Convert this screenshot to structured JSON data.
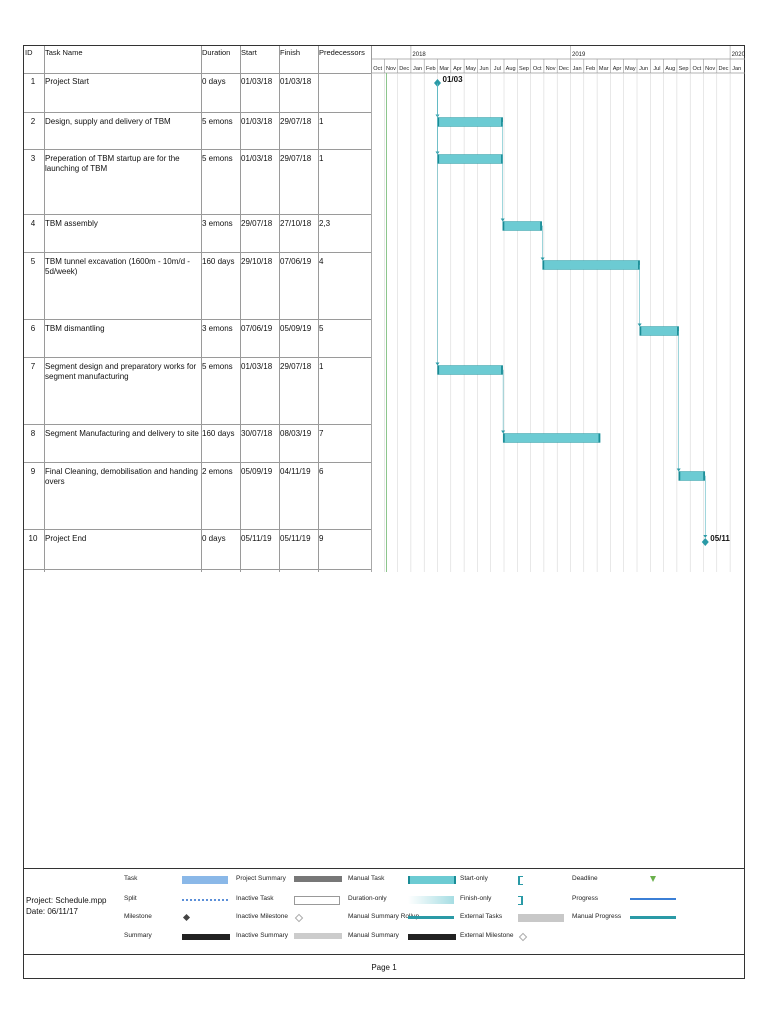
{
  "columns": {
    "id": "ID",
    "name": "Task Name",
    "duration": "Duration",
    "start": "Start",
    "finish": "Finish",
    "predecessors": "Predecessors"
  },
  "timeline": {
    "years": [
      "2018",
      "2019",
      "2020"
    ],
    "months": [
      "Oct",
      "Nov",
      "Dec",
      "Jan",
      "Feb",
      "Mar",
      "Apr",
      "May",
      "Jun",
      "Jul",
      "Aug",
      "Sep",
      "Oct",
      "Nov",
      "Dec",
      "Jan",
      "Feb",
      "Mar",
      "Apr",
      "May",
      "Jun",
      "Jul",
      "Aug",
      "Sep",
      "Oct",
      "Nov",
      "Dec",
      "Jan"
    ]
  },
  "tasks": [
    {
      "id": "1",
      "name": "Project Start",
      "duration": "0 days",
      "start": "01/03/18",
      "finish": "01/03/18",
      "pred": ""
    },
    {
      "id": "2",
      "name": "Design, supply and delivery of TBM",
      "duration": "5 emons",
      "start": "01/03/18",
      "finish": "29/07/18",
      "pred": "1"
    },
    {
      "id": "3",
      "name": "Preperation of TBM startup are for the launching of TBM",
      "duration": "5 emons",
      "start": "01/03/18",
      "finish": "29/07/18",
      "pred": "1"
    },
    {
      "id": "4",
      "name": "TBM assembly",
      "duration": "3 emons",
      "start": "29/07/18",
      "finish": "27/10/18",
      "pred": "2,3"
    },
    {
      "id": "5",
      "name": "TBM tunnel excavation (1600m - 10m/d - 5d/week)",
      "duration": "160 days",
      "start": "29/10/18",
      "finish": "07/06/19",
      "pred": "4"
    },
    {
      "id": "6",
      "name": "TBM dismantling",
      "duration": "3 emons",
      "start": "07/06/19",
      "finish": "05/09/19",
      "pred": "5"
    },
    {
      "id": "7",
      "name": "Segment design and preparatory works for segment manufacturing",
      "duration": "5 emons",
      "start": "01/03/18",
      "finish": "29/07/18",
      "pred": "1"
    },
    {
      "id": "8",
      "name": "Segment Manufacturing and delivery to site",
      "duration": "160 days",
      "start": "30/07/18",
      "finish": "08/03/19",
      "pred": "7"
    },
    {
      "id": "9",
      "name": "Final Cleaning, demobilisation and handing overs",
      "duration": "2 emons",
      "start": "05/09/19",
      "finish": "04/11/19",
      "pred": "6"
    },
    {
      "id": "10",
      "name": "Project End",
      "duration": "0 days",
      "start": "05/11/19",
      "finish": "05/11/19",
      "pred": "9"
    }
  ],
  "chart_data": {
    "type": "gantt",
    "x_range": [
      "2017-10-01",
      "2020-01-31"
    ],
    "bars": [
      {
        "task": "Design, supply and delivery of TBM",
        "start": "2018-03-01",
        "end": "2018-07-29"
      },
      {
        "task": "Preperation of TBM startup are for the launching of TBM",
        "start": "2018-03-01",
        "end": "2018-07-29"
      },
      {
        "task": "TBM assembly",
        "start": "2018-07-29",
        "end": "2018-10-27"
      },
      {
        "task": "TBM tunnel excavation (1600m - 10m/d - 5d/week)",
        "start": "2018-10-29",
        "end": "2019-06-07"
      },
      {
        "task": "TBM dismantling",
        "start": "2019-06-07",
        "end": "2019-09-05"
      },
      {
        "task": "Segment design and preparatory works for segment manufacturing",
        "start": "2018-03-01",
        "end": "2018-07-29"
      },
      {
        "task": "Segment Manufacturing and delivery to site",
        "start": "2018-07-30",
        "end": "2019-03-08"
      },
      {
        "task": "Final Cleaning, demobilisation and handing overs",
        "start": "2019-09-05",
        "end": "2019-11-04"
      }
    ],
    "milestones": [
      {
        "task": "Project Start",
        "date": "2018-03-01",
        "label": "01/03"
      },
      {
        "task": "Project End",
        "date": "2019-11-05",
        "label": "05/11"
      }
    ],
    "dependencies": [
      [
        1,
        2
      ],
      [
        1,
        3
      ],
      [
        1,
        7
      ],
      [
        2,
        4
      ],
      [
        4,
        5
      ],
      [
        5,
        6
      ],
      [
        7,
        8
      ],
      [
        6,
        9
      ],
      [
        9,
        10
      ]
    ],
    "colors": {
      "bar": "#6ccbd3",
      "bar_edge": "#1a8c96",
      "milestone": "#2a9aa6",
      "today_line": "#7fbf7f",
      "grid": "#d0d0d0"
    }
  },
  "legend": {
    "project": "Project: Schedule.mpp",
    "date": "Date: 06/11/17",
    "items": [
      "Task",
      "Split",
      "Milestone",
      "Summary",
      "Project Summary",
      "Inactive Task",
      "Inactive Milestone",
      "Inactive Summary",
      "Manual Task",
      "Duration-only",
      "Manual Summary Rollup",
      "Manual Summary",
      "Start-only",
      "Finish-only",
      "External Tasks",
      "External Milestone",
      "Deadline",
      "Progress",
      "Manual Progress"
    ]
  },
  "footer": {
    "page": "Page 1"
  }
}
